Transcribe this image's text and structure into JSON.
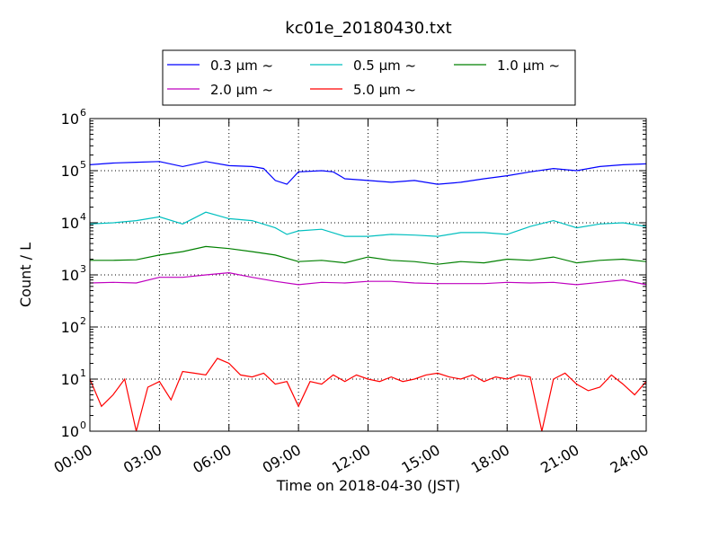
{
  "chart_data": {
    "type": "line",
    "title": "kc01e_20180430.txt",
    "xlabel": "Time on 2018-04-30 (JST)",
    "ylabel": "Count / L",
    "x_range": [
      "00:00",
      "24:00"
    ],
    "x_ticks": [
      "00:00",
      "03:00",
      "06:00",
      "09:00",
      "12:00",
      "15:00",
      "18:00",
      "21:00",
      "24:00"
    ],
    "y_scale": "log",
    "ylim": [
      1,
      1000000
    ],
    "y_ticks": [
      {
        "base": "10",
        "exp": "0"
      },
      {
        "base": "10",
        "exp": "1"
      },
      {
        "base": "10",
        "exp": "2"
      },
      {
        "base": "10",
        "exp": "3"
      },
      {
        "base": "10",
        "exp": "4"
      },
      {
        "base": "10",
        "exp": "5"
      },
      {
        "base": "10",
        "exp": "6"
      }
    ],
    "grid": true,
    "legend_position": "top",
    "series": [
      {
        "name": "0.3 μm ~",
        "color": "#0000ff",
        "points": [
          [
            0,
            130000
          ],
          [
            1,
            140000
          ],
          [
            2,
            145000
          ],
          [
            3,
            150000
          ],
          [
            4,
            120000
          ],
          [
            5,
            150000
          ],
          [
            6,
            125000
          ],
          [
            7,
            120000
          ],
          [
            7.5,
            110000
          ],
          [
            8,
            65000
          ],
          [
            8.5,
            55000
          ],
          [
            9,
            95000
          ],
          [
            10,
            100000
          ],
          [
            10.5,
            95000
          ],
          [
            11,
            70000
          ],
          [
            12,
            65000
          ],
          [
            13,
            60000
          ],
          [
            14,
            65000
          ],
          [
            15,
            55000
          ],
          [
            16,
            60000
          ],
          [
            17,
            70000
          ],
          [
            18,
            80000
          ],
          [
            19,
            95000
          ],
          [
            20,
            110000
          ],
          [
            21,
            100000
          ],
          [
            22,
            120000
          ],
          [
            23,
            130000
          ],
          [
            24,
            135000
          ]
        ]
      },
      {
        "name": "0.5 μm ~",
        "color": "#00bfbf",
        "points": [
          [
            0,
            9500
          ],
          [
            1,
            10000
          ],
          [
            2,
            11000
          ],
          [
            3,
            13000
          ],
          [
            4,
            9500
          ],
          [
            5,
            16000
          ],
          [
            6,
            12000
          ],
          [
            7,
            11000
          ],
          [
            8,
            8000
          ],
          [
            8.5,
            6000
          ],
          [
            9,
            7000
          ],
          [
            10,
            7500
          ],
          [
            11,
            5500
          ],
          [
            12,
            5500
          ],
          [
            13,
            6000
          ],
          [
            14,
            5800
          ],
          [
            15,
            5500
          ],
          [
            16,
            6500
          ],
          [
            17,
            6500
          ],
          [
            18,
            6000
          ],
          [
            19,
            8500
          ],
          [
            20,
            11000
          ],
          [
            21,
            8000
          ],
          [
            22,
            9500
          ],
          [
            23,
            10000
          ],
          [
            24,
            8500
          ]
        ]
      },
      {
        "name": "1.0 μm ~",
        "color": "#008000",
        "points": [
          [
            0,
            1900
          ],
          [
            1,
            1900
          ],
          [
            2,
            1950
          ],
          [
            3,
            2400
          ],
          [
            4,
            2800
          ],
          [
            5,
            3500
          ],
          [
            6,
            3200
          ],
          [
            7,
            2800
          ],
          [
            8,
            2400
          ],
          [
            9,
            1800
          ],
          [
            10,
            1900
          ],
          [
            11,
            1700
          ],
          [
            12,
            2200
          ],
          [
            13,
            1900
          ],
          [
            14,
            1800
          ],
          [
            15,
            1600
          ],
          [
            16,
            1800
          ],
          [
            17,
            1700
          ],
          [
            18,
            2000
          ],
          [
            19,
            1900
          ],
          [
            20,
            2200
          ],
          [
            21,
            1700
          ],
          [
            22,
            1900
          ],
          [
            23,
            2000
          ],
          [
            24,
            1800
          ]
        ]
      },
      {
        "name": "2.0 μm ~",
        "color": "#bf00bf",
        "points": [
          [
            0,
            700
          ],
          [
            1,
            720
          ],
          [
            2,
            700
          ],
          [
            3,
            900
          ],
          [
            4,
            900
          ],
          [
            5,
            1000
          ],
          [
            6,
            1100
          ],
          [
            7,
            900
          ],
          [
            8,
            750
          ],
          [
            9,
            650
          ],
          [
            10,
            720
          ],
          [
            11,
            700
          ],
          [
            12,
            750
          ],
          [
            13,
            750
          ],
          [
            14,
            700
          ],
          [
            15,
            680
          ],
          [
            16,
            680
          ],
          [
            17,
            680
          ],
          [
            18,
            720
          ],
          [
            19,
            700
          ],
          [
            20,
            720
          ],
          [
            21,
            650
          ],
          [
            22,
            720
          ],
          [
            23,
            800
          ],
          [
            24,
            650
          ]
        ]
      },
      {
        "name": "5.0 μm ~",
        "color": "#ff0000",
        "points": [
          [
            0,
            10
          ],
          [
            0.5,
            3
          ],
          [
            1,
            5
          ],
          [
            1.5,
            10
          ],
          [
            2,
            1
          ],
          [
            2.5,
            7
          ],
          [
            3,
            9
          ],
          [
            3.5,
            4
          ],
          [
            4,
            14
          ],
          [
            4.5,
            13
          ],
          [
            5,
            12
          ],
          [
            5.5,
            25
          ],
          [
            6,
            20
          ],
          [
            6.5,
            12
          ],
          [
            7,
            11
          ],
          [
            7.5,
            13
          ],
          [
            8,
            8
          ],
          [
            8.5,
            9
          ],
          [
            9,
            3
          ],
          [
            9.5,
            9
          ],
          [
            10,
            8
          ],
          [
            10.5,
            12
          ],
          [
            11,
            9
          ],
          [
            11.5,
            12
          ],
          [
            12,
            10
          ],
          [
            12.5,
            9
          ],
          [
            13,
            11
          ],
          [
            13.5,
            9
          ],
          [
            14,
            10
          ],
          [
            14.5,
            12
          ],
          [
            15,
            13
          ],
          [
            15.5,
            11
          ],
          [
            16,
            10
          ],
          [
            16.5,
            12
          ],
          [
            17,
            9
          ],
          [
            17.5,
            11
          ],
          [
            18,
            10
          ],
          [
            18.5,
            12
          ],
          [
            19,
            11
          ],
          [
            19.5,
            1
          ],
          [
            20,
            10
          ],
          [
            20.5,
            13
          ],
          [
            21,
            8
          ],
          [
            21.5,
            6
          ],
          [
            22,
            7
          ],
          [
            22.5,
            12
          ],
          [
            23,
            8
          ],
          [
            23.5,
            5
          ],
          [
            24,
            9
          ]
        ]
      }
    ]
  }
}
